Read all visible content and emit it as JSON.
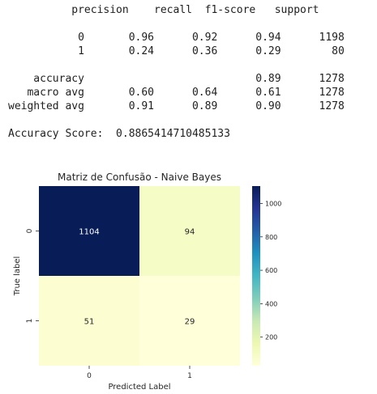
{
  "report": {
    "lines": [
      "          precision    recall  f1-score   support",
      "",
      "           0       0.96      0.92      0.94      1198",
      "           1       0.24      0.36      0.29        80",
      "",
      "    accuracy                           0.89      1278",
      "   macro avg       0.60      0.64      0.61      1278",
      "weighted avg       0.91      0.89      0.90      1278",
      "",
      "Accuracy Score:  0.8865414710485133"
    ],
    "classes": [
      {
        "label": "0",
        "precision": 0.96,
        "recall": 0.92,
        "f1": 0.94,
        "support": 1198
      },
      {
        "label": "1",
        "precision": 0.24,
        "recall": 0.36,
        "f1": 0.29,
        "support": 80
      }
    ],
    "accuracy": {
      "f1": 0.89,
      "support": 1278
    },
    "macro_avg": {
      "precision": 0.6,
      "recall": 0.64,
      "f1": 0.61,
      "support": 1278
    },
    "weighted_avg": {
      "precision": 0.91,
      "recall": 0.89,
      "f1": 0.9,
      "support": 1278
    },
    "accuracy_score": "0.8865414710485133"
  },
  "chart_data": {
    "type": "heatmap",
    "title": "Matriz de Confusão - Naive Bayes",
    "xlabel": "Predicted Label",
    "ylabel": "True label",
    "x_categories": [
      "0",
      "1"
    ],
    "y_categories": [
      "0",
      "1"
    ],
    "values": [
      [
        1104,
        94
      ],
      [
        51,
        29
      ]
    ],
    "colormap": "YlGnBu",
    "vmin": 29,
    "vmax": 1104,
    "colorbar_ticks": [
      200,
      400,
      600,
      800,
      1000
    ],
    "text_colors": {
      "dark_cell": "#ffffff",
      "light_cell": "#262626"
    }
  }
}
